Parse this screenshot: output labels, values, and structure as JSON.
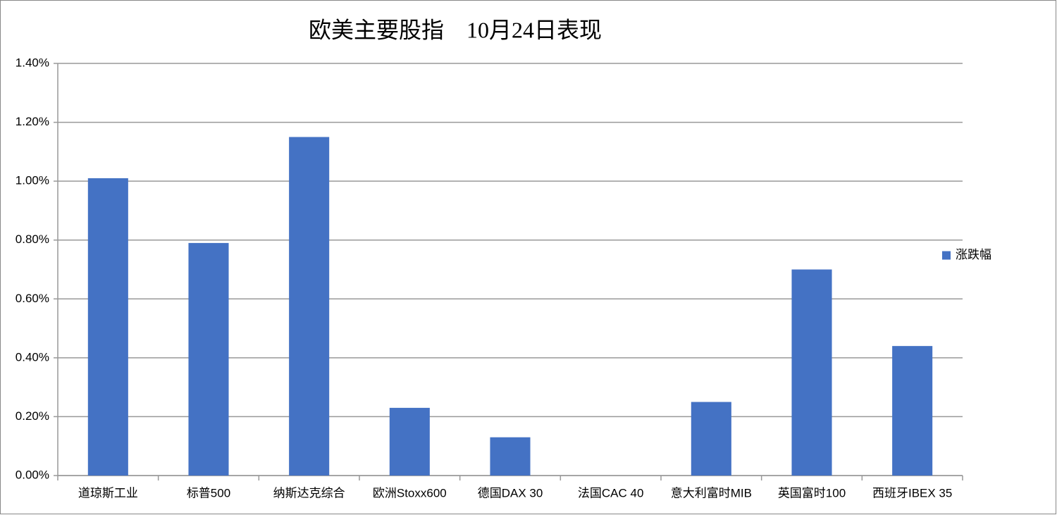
{
  "chart_data": {
    "type": "bar",
    "title": "欧美主要股指　10月24日表现",
    "categories": [
      "道琼斯工业",
      "标普500",
      "纳斯达克综合",
      "欧洲Stoxx600",
      "德国DAX 30",
      "法国CAC 40",
      "意大利富时MIB",
      "英国富时100",
      "西班牙IBEX 35"
    ],
    "series": [
      {
        "name": "涨跌幅",
        "color": "#4472c4",
        "values": [
          1.01,
          0.79,
          1.15,
          0.23,
          0.13,
          0,
          0.25,
          0.7,
          0.44
        ]
      }
    ],
    "ylim": [
      0,
      1.4
    ],
    "yticks": [
      {
        "value": 0,
        "label": "0.00%"
      },
      {
        "value": 0.2,
        "label": "0.20%"
      },
      {
        "value": 0.4,
        "label": "0.40%"
      },
      {
        "value": 0.6,
        "label": "0.60%"
      },
      {
        "value": 0.8,
        "label": "0.80%"
      },
      {
        "value": 1.0,
        "label": "1.00%"
      },
      {
        "value": 1.2,
        "label": "1.20%"
      },
      {
        "value": 1.4,
        "label": "1.40%"
      }
    ],
    "grid": true,
    "legend": "right"
  }
}
